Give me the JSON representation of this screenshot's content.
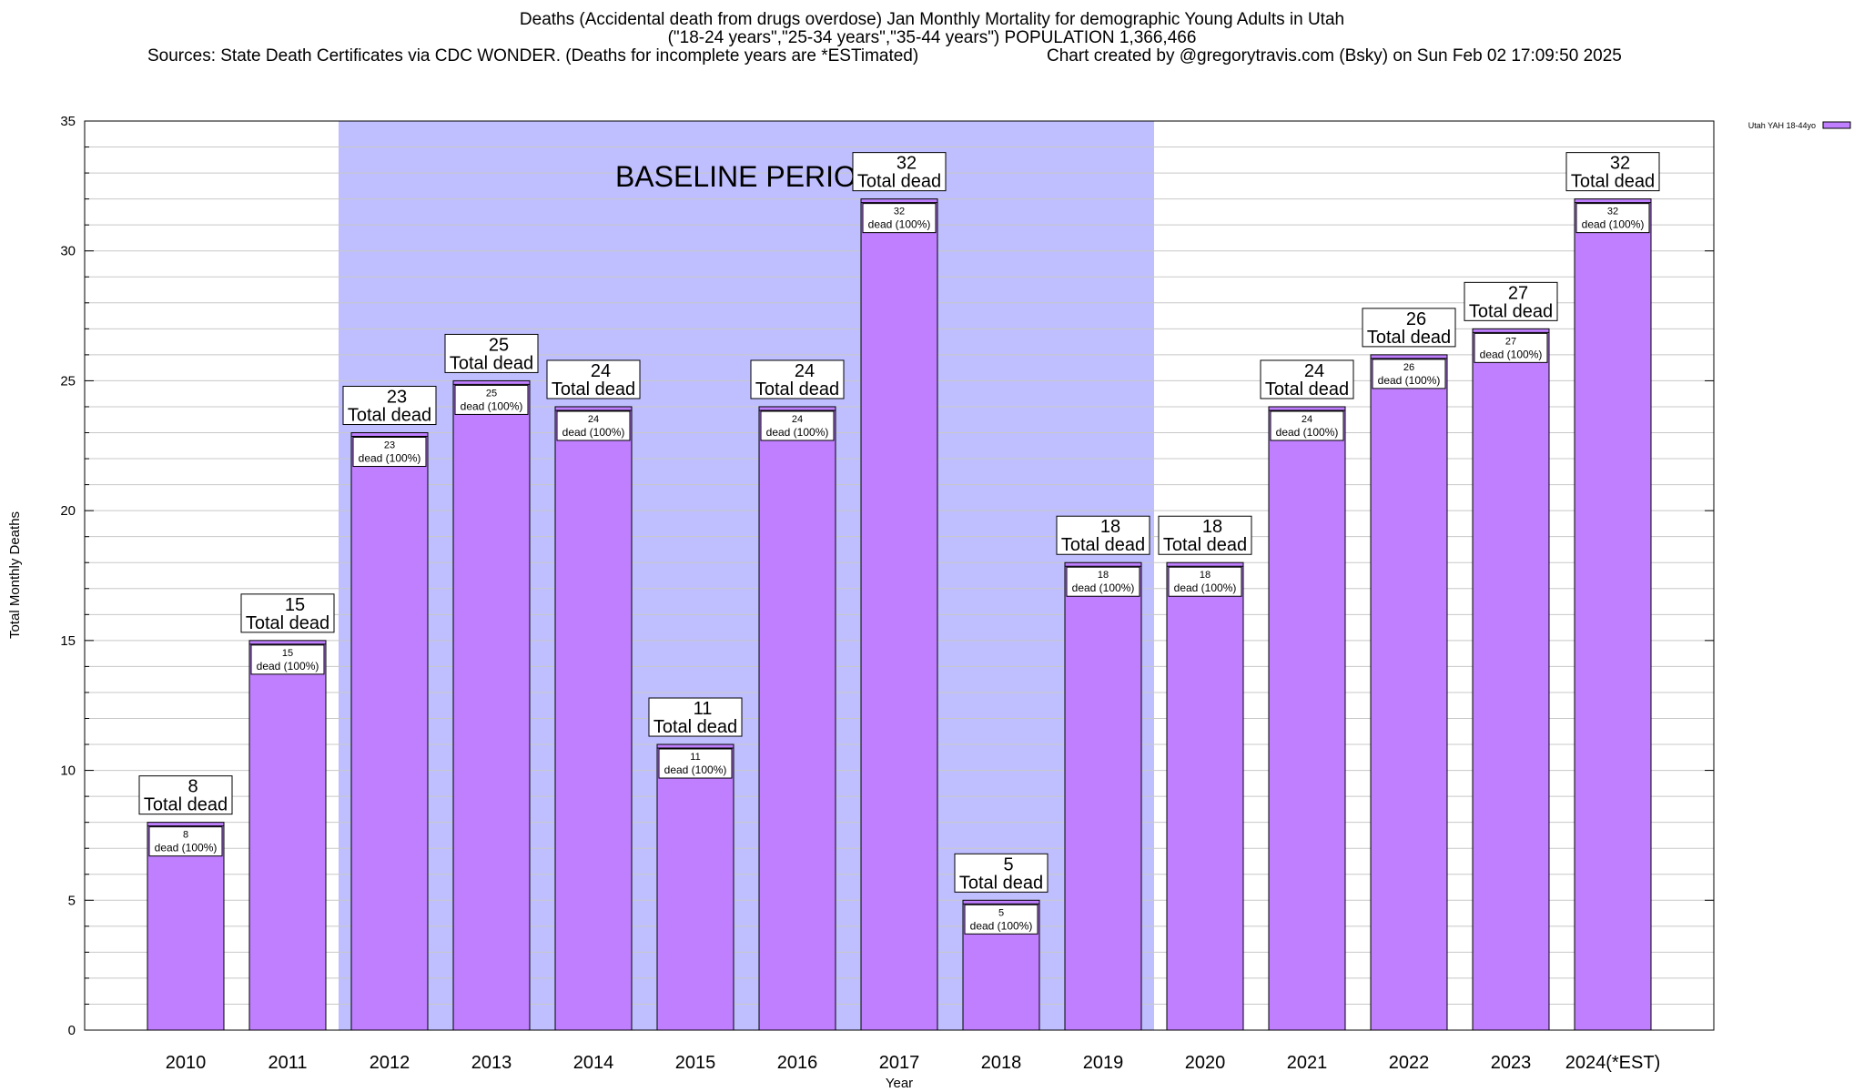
{
  "title_lines": [
    "Deaths (Accidental death from drugs overdose) Jan Monthly Mortality for demographic Young Adults in Utah",
    "(\"18-24 years\",\"25-34 years\",\"35-44 years\") POPULATION 1,366,466"
  ],
  "sources_text": "Sources: State Death Certificates via CDC WONDER. (Deaths for incomplete years are *ESTimated)",
  "credit_text": "Chart created by @gregorytravis.com (Bsky) on Sun Feb 02 17:09:50 2025",
  "chart_data": {
    "type": "bar",
    "title": "Deaths (Accidental death from drugs overdose) Jan Monthly Mortality for demographic Young Adults in Utah",
    "xlabel": "Year",
    "ylabel": "Total Monthly Deaths",
    "ylim": [
      0,
      35
    ],
    "yticks": [
      0,
      5,
      10,
      15,
      20,
      25,
      30,
      35
    ],
    "grid": true,
    "legend_position": "top-right",
    "categories": [
      "2010",
      "2011",
      "2012",
      "2013",
      "2014",
      "2015",
      "2016",
      "2017",
      "2018",
      "2019",
      "2020",
      "2021",
      "2022",
      "2023",
      "2024(*EST)"
    ],
    "series": [
      {
        "name": "Utah YAH 18-44yo",
        "values": [
          8,
          15,
          23,
          25,
          24,
          11,
          24,
          32,
          5,
          18,
          18,
          24,
          26,
          27,
          32
        ]
      }
    ],
    "top_label_suffix": "Total dead",
    "inner_label_suffix": "dead (100%)",
    "baseline_period": {
      "label": "BASELINE PERIOD",
      "start": "2012",
      "end": "2019"
    },
    "colors": {
      "bar": "#bf7fff",
      "baseline_shade": "#bfbfff",
      "grid": "#c8c8c8"
    }
  }
}
